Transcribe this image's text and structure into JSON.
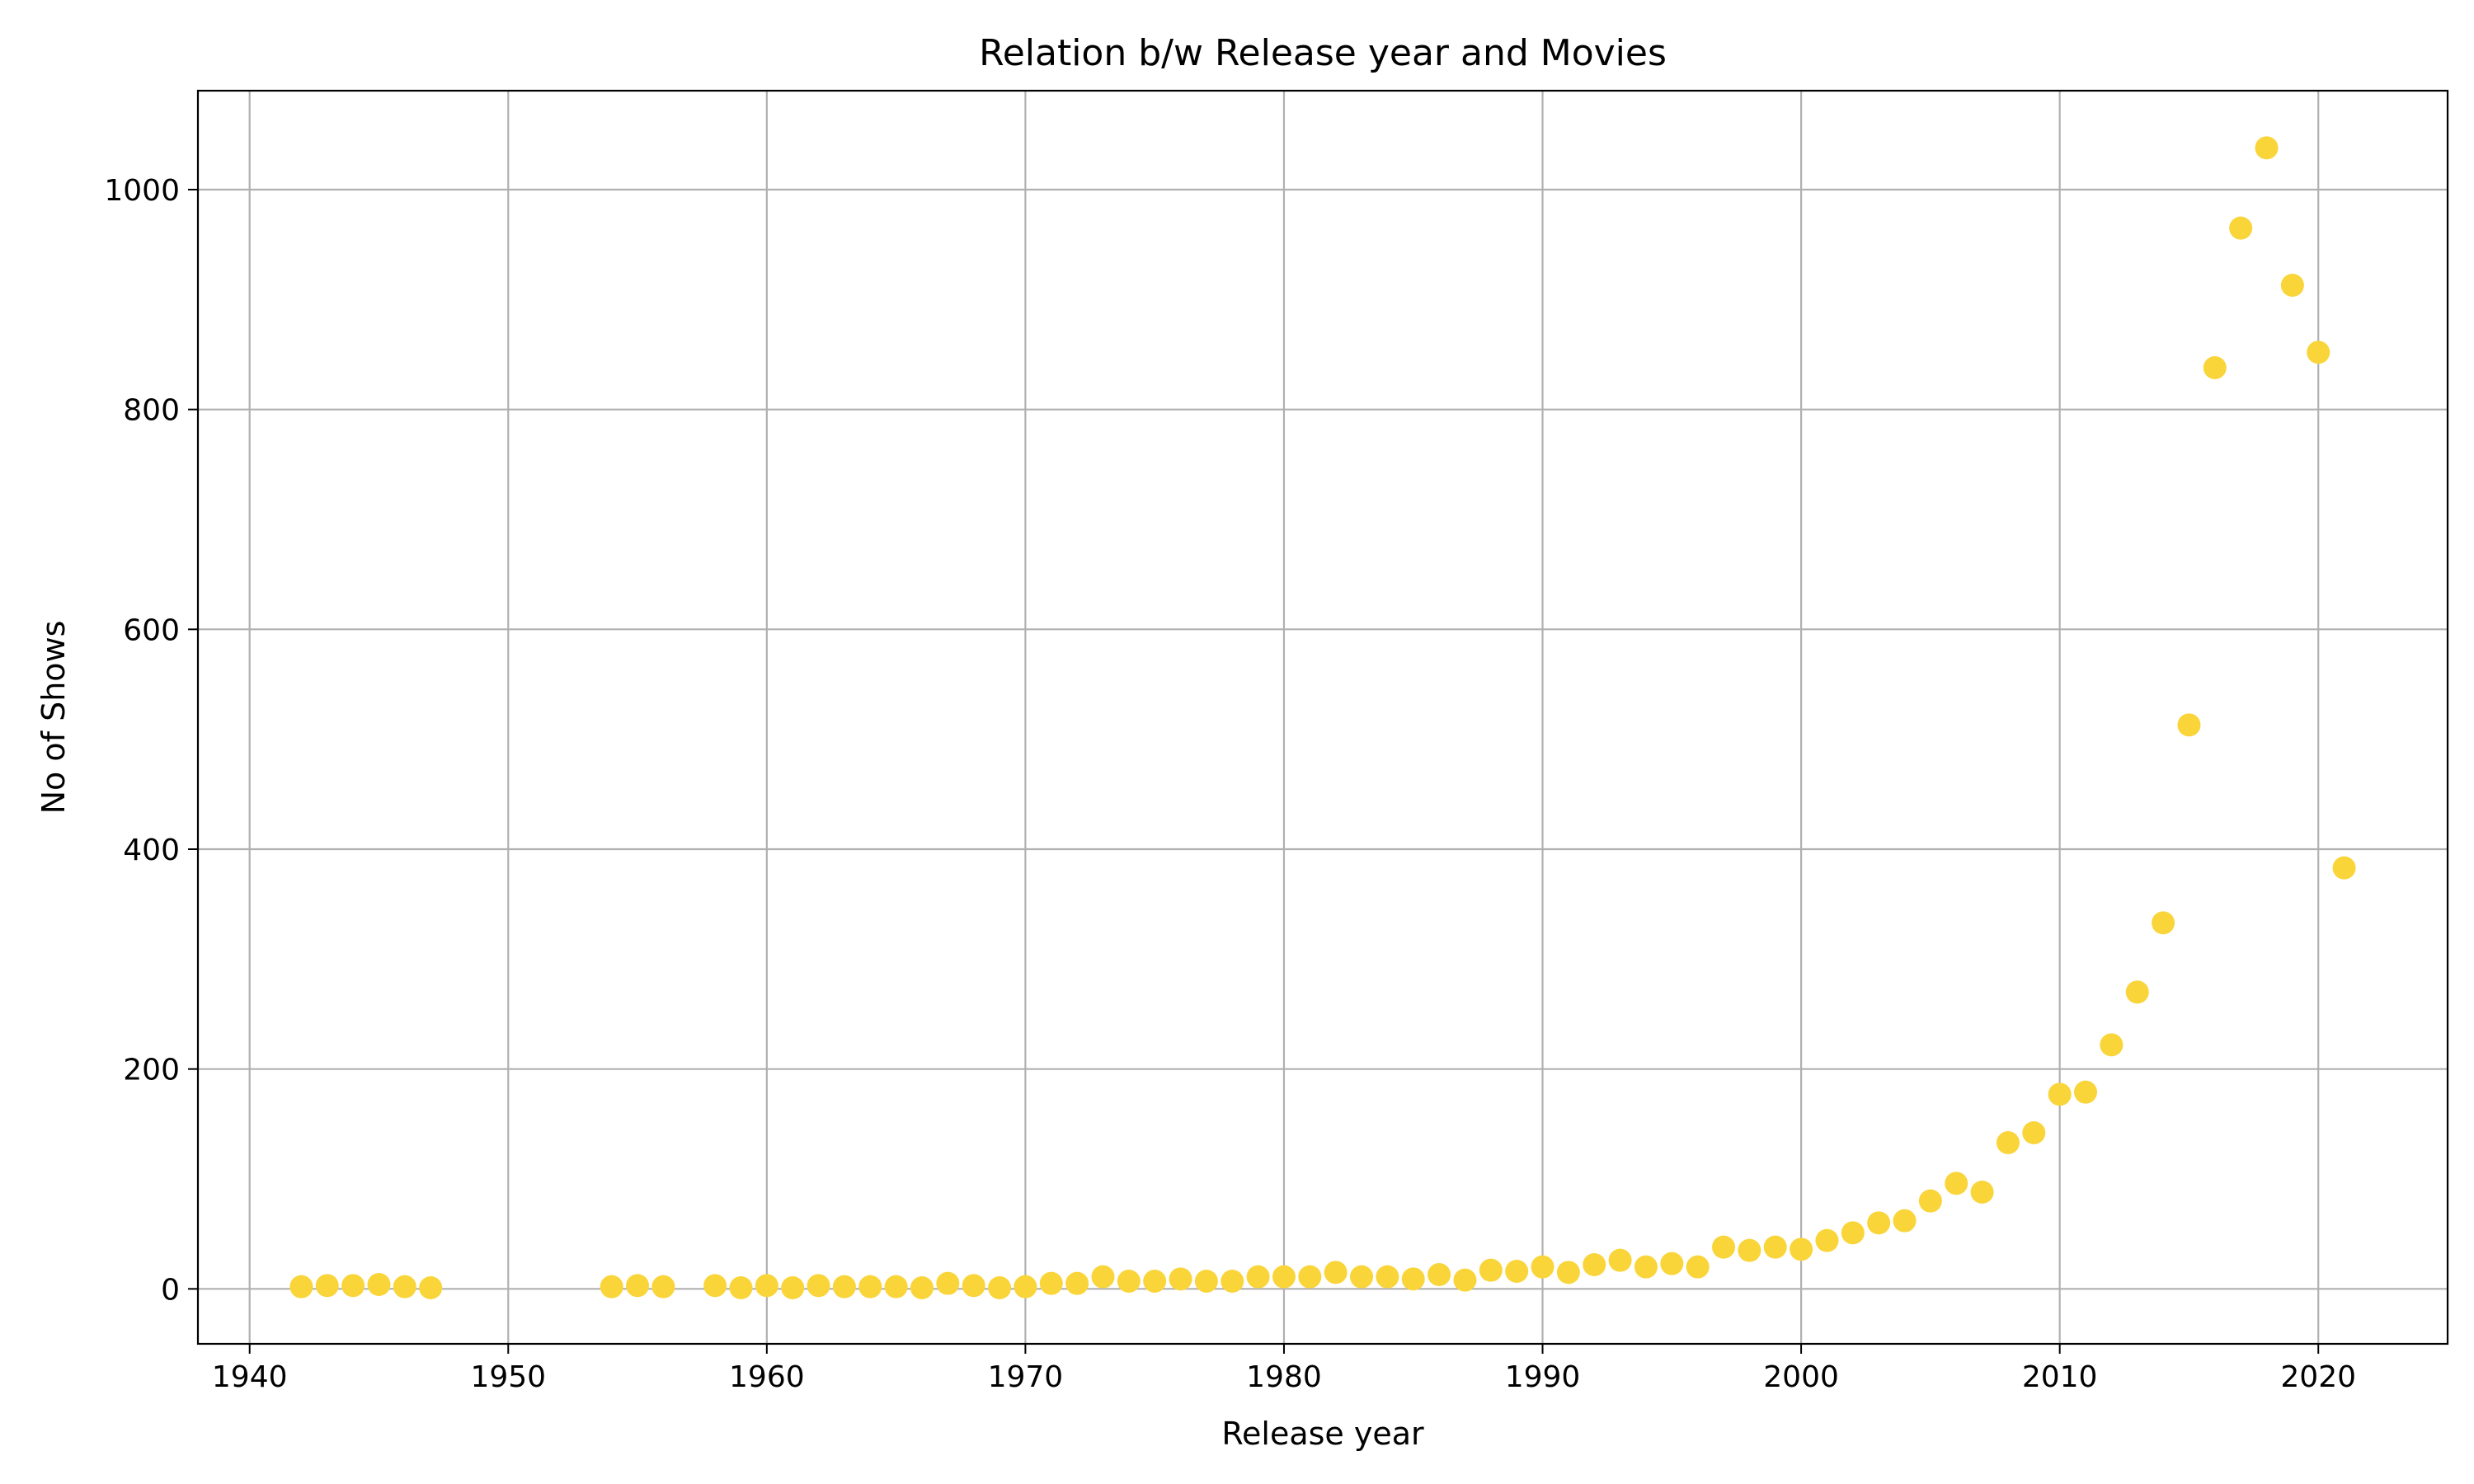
{
  "chart_data": {
    "type": "scatter",
    "title": "Relation b/w Release year and Movies",
    "xlabel": "Release year",
    "ylabel": "No of Shows",
    "xlim": [
      1938,
      2025
    ],
    "ylim": [
      -50,
      1090
    ],
    "xticks": [
      "1940",
      "1950",
      "1960",
      "1970",
      "1980",
      "1990",
      "2000",
      "2010",
      "2020"
    ],
    "yticks": [
      "0",
      "200",
      "400",
      "600",
      "800",
      "1000"
    ],
    "grid": true,
    "marker_color": "#f9d53a",
    "series": [
      {
        "x": [
          1942,
          1943,
          1944,
          1945,
          1946,
          1947,
          1954,
          1955,
          1956,
          1958,
          1959,
          1960,
          1961,
          1962,
          1963,
          1964,
          1965,
          1966,
          1967,
          1968,
          1969,
          1970,
          1971,
          1972,
          1973,
          1974,
          1975,
          1976,
          1977,
          1978,
          1979,
          1980,
          1981,
          1982,
          1983,
          1984,
          1985,
          1986,
          1987,
          1988,
          1989,
          1990,
          1991,
          1992,
          1993,
          1994,
          1995,
          1996,
          1997,
          1998,
          1999,
          2000,
          2001,
          2002,
          2003,
          2004,
          2005,
          2006,
          2007,
          2008,
          2009,
          2010,
          2011,
          2012,
          2013,
          2014,
          2015,
          2016,
          2017,
          2018,
          2019,
          2020,
          2021
        ],
        "y": [
          2,
          3,
          3,
          4,
          2,
          1,
          2,
          3,
          2,
          3,
          1,
          3,
          1,
          3,
          2,
          2,
          2,
          1,
          5,
          3,
          1,
          2,
          5,
          5,
          11,
          7,
          7,
          9,
          7,
          7,
          11,
          11,
          11,
          15,
          11,
          11,
          9,
          13,
          8,
          17,
          16,
          20,
          15,
          22,
          26,
          20,
          23,
          20,
          38,
          35,
          38,
          36,
          44,
          51,
          60,
          62,
          80,
          96,
          88,
          133,
          142,
          177,
          179,
          222,
          270,
          333,
          513,
          838,
          965,
          1038,
          913,
          852,
          383
        ]
      }
    ]
  }
}
